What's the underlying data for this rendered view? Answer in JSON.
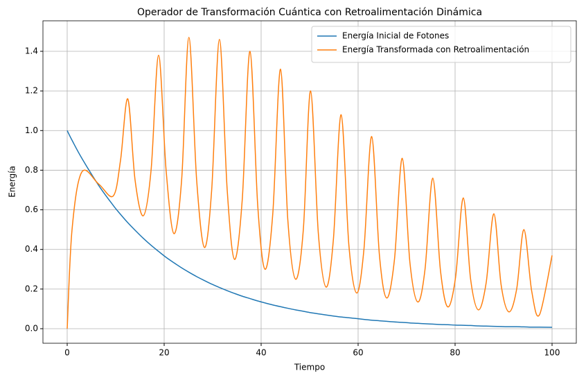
{
  "chart_data": {
    "type": "line",
    "title": "Operador de Transformación Cuántica con Retroalimentación Dinámica",
    "xlabel": "Tiempo",
    "ylabel": "Energía",
    "x": [
      0,
      1,
      3,
      6.5,
      9.5,
      11,
      12.5,
      14,
      15.7,
      17.3,
      18.85,
      20.4,
      22,
      23.6,
      25.1,
      26.7,
      28.3,
      29.8,
      31.4,
      33,
      34.5,
      36.1,
      37.7,
      39.3,
      40.8,
      42.4,
      44,
      45.5,
      47.1,
      48.7,
      50.2,
      51.8,
      53.4,
      54.9,
      56.5,
      58.1,
      59.7,
      61.2,
      62.8,
      64.4,
      65.9,
      67.5,
      69.1,
      70.7,
      72.3,
      73.8,
      75.4,
      77,
      78.5,
      80.1,
      81.7,
      83.2,
      84.8,
      86.4,
      88,
      89.5,
      91.1,
      92.7,
      94.2,
      95.8,
      97.4,
      100
    ],
    "series": [
      {
        "name": "Energía Inicial de Fotones",
        "color": "#1f77b4",
        "values": [
          1,
          0.951,
          0.861,
          0.723,
          0.622,
          0.577,
          0.535,
          0.497,
          0.456,
          0.421,
          0.39,
          0.36,
          0.333,
          0.307,
          0.285,
          0.263,
          0.243,
          0.225,
          0.208,
          0.192,
          0.178,
          0.164,
          0.152,
          0.14,
          0.13,
          0.12,
          0.111,
          0.103,
          0.095,
          0.088,
          0.081,
          0.075,
          0.069,
          0.064,
          0.059,
          0.055,
          0.051,
          0.047,
          0.043,
          0.04,
          0.037,
          0.034,
          0.032,
          0.029,
          0.027,
          0.025,
          0.023,
          0.021,
          0.02,
          0.018,
          0.017,
          0.016,
          0.014,
          0.013,
          0.012,
          0.011,
          0.01,
          0.01,
          0.009,
          0.008,
          0.008,
          0.007
        ]
      },
      {
        "name": "Energía Transformada con Retroalimentación",
        "color": "#ff7f0e",
        "values": [
          0,
          0.5,
          0.79,
          0.73,
          0.67,
          0.85,
          1.16,
          0.75,
          0.57,
          0.8,
          1.38,
          0.8,
          0.48,
          0.75,
          1.47,
          0.75,
          0.41,
          0.7,
          1.46,
          0.7,
          0.35,
          0.65,
          1.4,
          0.62,
          0.3,
          0.58,
          1.31,
          0.55,
          0.25,
          0.5,
          1.2,
          0.48,
          0.21,
          0.45,
          1.08,
          0.42,
          0.18,
          0.4,
          0.97,
          0.37,
          0.155,
          0.35,
          0.86,
          0.33,
          0.135,
          0.3,
          0.76,
          0.29,
          0.11,
          0.26,
          0.66,
          0.25,
          0.095,
          0.23,
          0.58,
          0.22,
          0.085,
          0.2,
          0.5,
          0.19,
          0.07,
          0.37
        ]
      }
    ],
    "xlim": [
      -5,
      105
    ],
    "ylim": [
      -0.0735,
      1.554
    ],
    "xticks": [
      0,
      20,
      40,
      60,
      80,
      100
    ],
    "yticks": [
      {
        "value": 0,
        "label": "0.0"
      },
      0.2,
      0.4,
      0.6,
      0.8,
      {
        "value": 1,
        "label": "1.0"
      },
      1.2,
      1.4
    ],
    "grid": true,
    "legend": "upper right"
  }
}
